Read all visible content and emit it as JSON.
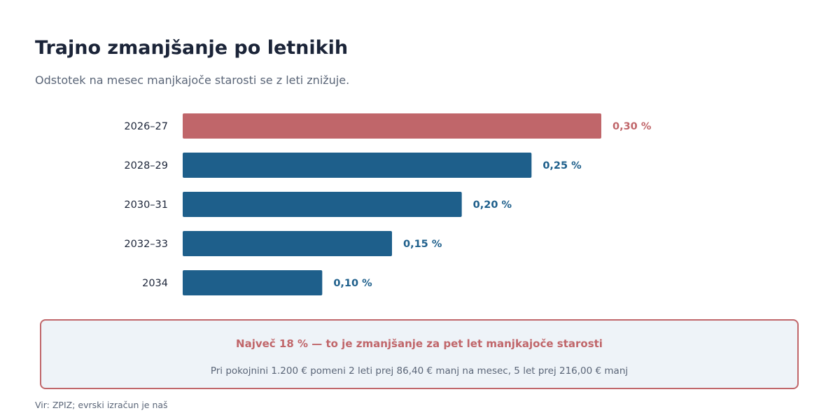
{
  "header": {
    "title": "Trajno zmanjšanje po letnikih",
    "subtitle": "Odstotek na mesec manjkajoče starosti se z leti znižuje."
  },
  "chart_data": {
    "type": "bar",
    "orientation": "horizontal",
    "categories": [
      "2026–27",
      "2028–29",
      "2030–31",
      "2032–33",
      "2034"
    ],
    "values": [
      0.3,
      0.25,
      0.2,
      0.15,
      0.1
    ],
    "value_labels": [
      "0,30 %",
      "0,25 %",
      "0,20 %",
      "0,15 %",
      "0,10 %"
    ],
    "xlim": [
      0,
      0.3
    ],
    "grid": false,
    "legend": "none",
    "colors": [
      "#c0666a",
      "#1e5f8b",
      "#1e5f8b",
      "#1e5f8b",
      "#1e5f8b"
    ]
  },
  "callout": {
    "headline": "Največ 18 % — to je zmanjšanje za pet let manjkajoče starosti",
    "detail": "Pri pokojnini 1.200 € pomeni 2 leti prej 86,40 € manj na mesec, 5 let prej 216,00 € manj"
  },
  "footer": {
    "source": "Vir: ZPIZ; evrski izračun je naš"
  },
  "colors": {
    "highlight": "#c0666a",
    "primary": "#1e5f8b",
    "text_dark": "#1b2438",
    "text_muted": "#5a6577",
    "callout_bg": "#eef3f8"
  }
}
